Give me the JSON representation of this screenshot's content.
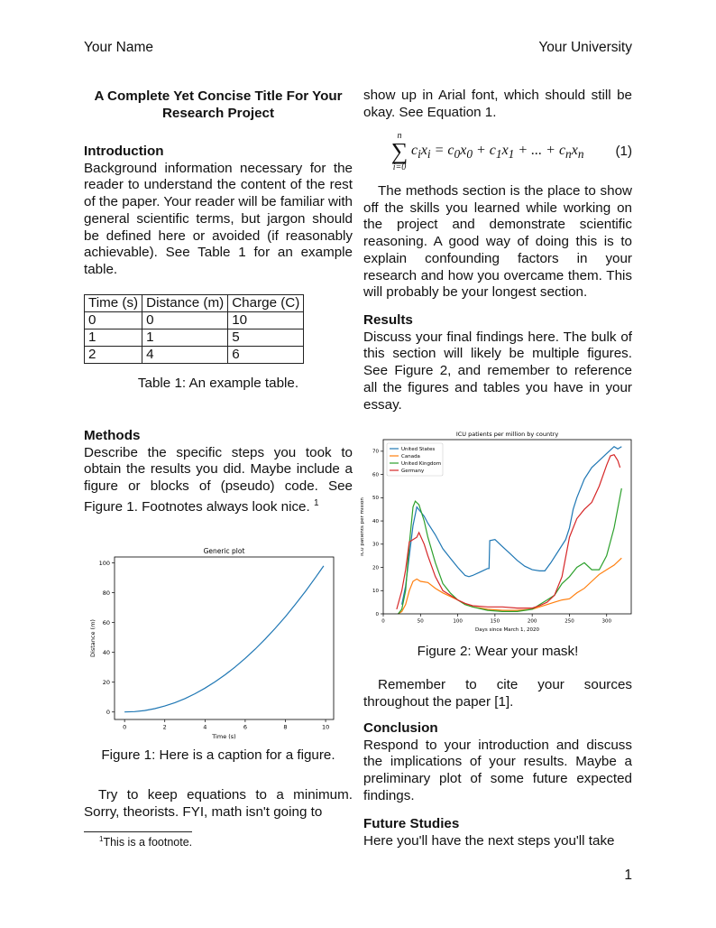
{
  "header": {
    "left": "Your Name",
    "right": "Your University"
  },
  "title": "A Complete Yet Concise Title For Your Research Project",
  "intro": {
    "heading": "Introduction",
    "text": "Background information necessary for the reader to understand the content of the rest of the paper. Your reader will be familiar with general scientific terms, but jargon should be defined here or avoided (if reasonably achievable). See Table 1 for an example table."
  },
  "table": {
    "headers": [
      "Time (s)",
      "Distance (m)",
      "Charge (C)"
    ],
    "rows": [
      [
        "0",
        "0",
        "10"
      ],
      [
        "1",
        "1",
        "5"
      ],
      [
        "2",
        "4",
        "6"
      ]
    ],
    "caption": "Table 1: An example table."
  },
  "methods": {
    "heading": "Methods",
    "text": "Describe the specific steps you took to obtain the results you did. Maybe include a figure or blocks of (pseudo) code. See Figure 1. Footnotes always look nice.",
    "footnote_mark": "1"
  },
  "figure1_caption": "Figure 1: Here is a caption for a figure.",
  "para_equations": "Try to keep equations to a minimum. Sorry, theorists. FYI, math isn't going to",
  "footnote": {
    "mark": "1",
    "text": "This is a footnote."
  },
  "right_top": "show up in Arial font, which should still be okay. See Equation 1.",
  "equation": {
    "lhs_sup": "n",
    "lhs_sub": "i=0",
    "sum": "∑",
    "body": "c<sub>i</sub>x<sub>i</sub> = c<sub>0</sub>x<sub>0</sub> + c<sub>1</sub>x<sub>1</sub> + ... + c<sub>n</sub>x<sub>n</sub>",
    "number": "(1)"
  },
  "methods_cont": "The methods section is the place to show off the skills you learned while working on the project and demonstrate scientific reasoning. A good way of doing this is to explain confounding factors in your research and how you overcame them. This will probably be your longest section.",
  "results": {
    "heading": "Results",
    "text": "Discuss your final findings here. The bulk of this section will likely be multiple figures. See Figure 2, and remember to reference all the figures and tables you have in your essay."
  },
  "figure2_caption": "Figure 2: Wear your mask!",
  "cite_para": "Remember to cite your sources throughout the paper [1].",
  "conclusion": {
    "heading": "Conclusion",
    "text": "Respond to your introduction and discuss the implications of your results. Maybe a preliminary plot of some future expected findings."
  },
  "future": {
    "heading": "Future Studies",
    "text": "Here you'll have the next steps you'll take"
  },
  "page_number": "1",
  "chart_data": [
    {
      "type": "line",
      "title": "Generic plot",
      "xlabel": "Time (s)",
      "ylabel": "Distance (m)",
      "xlim": [
        -0.5,
        10.4
      ],
      "ylim": [
        -5,
        104
      ],
      "xticks": [
        0,
        2,
        4,
        6,
        8,
        10
      ],
      "yticks": [
        0,
        20,
        40,
        60,
        80,
        100
      ],
      "color": "#1f77b4",
      "x": [
        0,
        0.5,
        1,
        1.5,
        2,
        2.5,
        3,
        3.5,
        4,
        4.5,
        5,
        5.5,
        6,
        6.5,
        7,
        7.5,
        8,
        8.5,
        9,
        9.5,
        9.9
      ],
      "y": [
        0,
        0.25,
        1,
        2.25,
        4,
        6.25,
        9,
        12.25,
        16,
        20.25,
        25,
        30.25,
        36,
        42.25,
        49,
        56.25,
        64,
        72.25,
        81,
        90.25,
        98.01
      ]
    },
    {
      "type": "line",
      "title": "ICU patients per million by country",
      "xlabel": "Days since March 1, 2020",
      "ylabel": "ICU patients per million",
      "xlim": [
        0,
        333
      ],
      "ylim": [
        0,
        75
      ],
      "xticks": [
        0,
        50,
        100,
        150,
        200,
        250,
        300
      ],
      "yticks": [
        0,
        10,
        20,
        30,
        40,
        50,
        60,
        70
      ],
      "legend": "top-left",
      "series": [
        {
          "name": "United States",
          "color": "#1f77b4",
          "x": [
            25,
            30,
            35,
            40,
            45,
            50,
            55,
            60,
            70,
            80,
            90,
            100,
            110,
            115,
            120,
            130,
            140,
            142,
            143,
            150,
            160,
            170,
            180,
            190,
            200,
            210,
            217,
            225,
            235,
            245,
            250,
            255,
            260,
            270,
            280,
            290,
            300,
            310,
            315,
            320
          ],
          "y": [
            4,
            12,
            25,
            38,
            46,
            44,
            42,
            39,
            34,
            28,
            24,
            20,
            16.5,
            16,
            16.5,
            18,
            19.5,
            19.5,
            31.5,
            32,
            29,
            26,
            23,
            20.5,
            19,
            18.5,
            18.5,
            22,
            27,
            32,
            37,
            45,
            50,
            58,
            63,
            66,
            69,
            72,
            71,
            72
          ]
        },
        {
          "name": "Canada",
          "color": "#ff7f0e",
          "x": [
            20,
            25,
            30,
            35,
            40,
            45,
            50,
            60,
            70,
            80,
            90,
            100,
            110,
            120,
            140,
            160,
            180,
            200,
            210,
            220,
            230,
            240,
            250,
            260,
            270,
            280,
            290,
            300,
            310,
            320
          ],
          "y": [
            0,
            1,
            4,
            10,
            14,
            15,
            14,
            13.5,
            11,
            9,
            7.5,
            6,
            4,
            3,
            2,
            1.5,
            1.5,
            2,
            3,
            4,
            5,
            6,
            6.5,
            9,
            11,
            14,
            17,
            19,
            21,
            24
          ]
        },
        {
          "name": "United Kingdom",
          "color": "#2ca02c",
          "x": [
            20,
            25,
            30,
            35,
            40,
            43,
            48,
            55,
            60,
            70,
            80,
            90,
            100,
            110,
            120,
            140,
            160,
            180,
            200,
            210,
            220,
            230,
            240,
            250,
            260,
            270,
            280,
            290,
            300,
            310,
            320
          ],
          "y": [
            0,
            2,
            10,
            30,
            46,
            48.5,
            47,
            40,
            33,
            22,
            13,
            9,
            6,
            4,
            3,
            1.5,
            1,
            1,
            2,
            4,
            6,
            8,
            13,
            16,
            20,
            22,
            19,
            19,
            25,
            37,
            54
          ]
        },
        {
          "name": "Germany",
          "color": "#d62728",
          "x": [
            18,
            25,
            30,
            35,
            40,
            45,
            48,
            55,
            60,
            70,
            80,
            90,
            100,
            110,
            120,
            140,
            160,
            180,
            200,
            210,
            220,
            230,
            240,
            250,
            260,
            270,
            280,
            290,
            300,
            305,
            310,
            315,
            318
          ],
          "y": [
            2,
            10,
            19,
            31,
            32,
            33,
            35,
            30,
            25,
            16,
            10,
            8,
            6,
            4.5,
            3.5,
            3,
            3,
            2.5,
            2.5,
            3.5,
            5,
            8,
            16,
            33,
            41,
            45,
            48,
            55,
            64,
            68,
            68.5,
            66,
            63
          ]
        }
      ]
    }
  ]
}
